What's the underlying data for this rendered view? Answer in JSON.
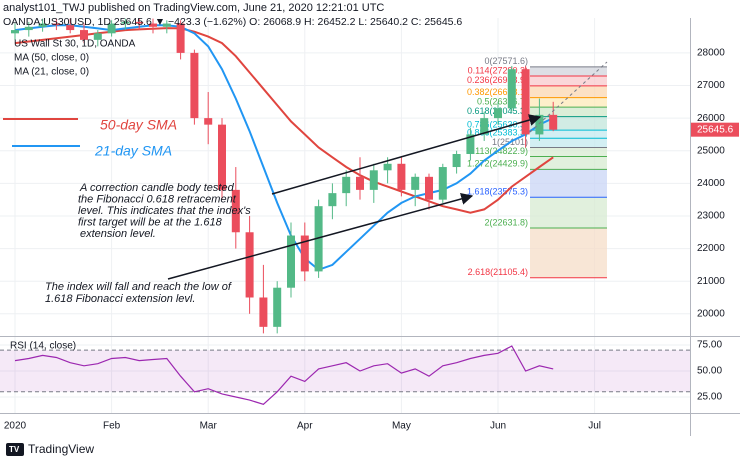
{
  "chart_data": {
    "type": "candlestick",
    "subtitle": "analyst101_TWJ published on TradingView.com, June 21, 2020 12:21:01 UTC",
    "quote_line": "OANDA:US30USD, 1D  25645.6  ▼ −423.3 (−1.62%)  O: 26068.9  H: 26452.2  L: 25640.2  C: 25645.6",
    "title": "US Wall St 30, 1D, OANDA",
    "categories": [
      "2020",
      null,
      null,
      null,
      null,
      null,
      null,
      "Feb",
      null,
      null,
      null,
      null,
      null,
      null,
      "Mar",
      null,
      null,
      null,
      null,
      null,
      null,
      "Apr",
      null,
      null,
      null,
      null,
      null,
      null,
      "May",
      null,
      null,
      null,
      null,
      null,
      null,
      "Jun",
      null,
      null,
      null,
      null,
      null,
      null,
      "Jul",
      null,
      null,
      null,
      null,
      null,
      null
    ],
    "open": [
      28600,
      28700,
      28800,
      28900,
      28850,
      28700,
      28400,
      28600,
      28900,
      28950,
      28900,
      28800,
      28900,
      28000,
      26000,
      25800,
      23800,
      22500,
      20500,
      19600,
      20800,
      22400,
      21300,
      23300,
      23700,
      24200,
      23800,
      24400,
      24600,
      23800,
      24200,
      23500,
      24500,
      24900,
      25500,
      26000,
      26300,
      27500,
      25500,
      26100,
      null,
      null,
      null,
      null,
      null,
      null,
      null,
      null,
      null
    ],
    "high": [
      28900,
      28950,
      29050,
      29050,
      29050,
      28900,
      28700,
      29000,
      29050,
      29050,
      29050,
      29000,
      29000,
      28100,
      26800,
      26000,
      24500,
      23000,
      21500,
      21000,
      22800,
      22800,
      23500,
      24000,
      24400,
      24800,
      24600,
      24800,
      24800,
      24300,
      24300,
      24600,
      25000,
      25700,
      26200,
      26500,
      27600,
      27600,
      26600,
      26500,
      null,
      null,
      null,
      null,
      null,
      null,
      null,
      null,
      null
    ],
    "low": [
      28400,
      28500,
      28650,
      28700,
      28600,
      28300,
      28200,
      28500,
      28700,
      28700,
      28600,
      28600,
      27800,
      25800,
      25200,
      23500,
      22000,
      20000,
      19400,
      19400,
      20500,
      21000,
      21100,
      22900,
      23300,
      23500,
      23400,
      24000,
      23600,
      23300,
      23200,
      23400,
      24300,
      24700,
      25300,
      25800,
      26200,
      25100,
      25300,
      25600,
      null,
      null,
      null,
      null,
      null,
      null,
      null,
      null,
      null
    ],
    "close": [
      28700,
      28800,
      28900,
      28850,
      28700,
      28400,
      28600,
      28900,
      28950,
      28900,
      28800,
      28900,
      28000,
      26000,
      25800,
      23800,
      22500,
      20500,
      19600,
      20800,
      22400,
      21300,
      23300,
      23700,
      24200,
      23800,
      24400,
      24600,
      23800,
      24200,
      23500,
      24500,
      24900,
      25500,
      26000,
      26300,
      27500,
      25500,
      26100,
      25645.6,
      null,
      null,
      null,
      null,
      null,
      null,
      null,
      null,
      null
    ],
    "up_color": "#53b987",
    "down_color": "#eb4d5c",
    "last_label": "25645.6",
    "series": [
      {
        "name": "MA (50, close, 0)",
        "color": "#e0453f",
        "values": [
          28300,
          28350,
          28400,
          28450,
          28500,
          28550,
          28600,
          28650,
          28700,
          28720,
          28740,
          28760,
          28750,
          28650,
          28500,
          28300,
          27900,
          27400,
          26900,
          26400,
          25900,
          25500,
          25100,
          24800,
          24500,
          24250,
          24050,
          23900,
          23750,
          23600,
          23450,
          23300,
          23200,
          23100,
          23200,
          23500,
          23900,
          24200,
          24500,
          24800,
          null,
          null,
          null,
          null,
          null,
          null,
          null,
          null,
          null
        ]
      },
      {
        "name": "MA (21, close, 0)",
        "color": "#2196f3",
        "values": [
          28700,
          28750,
          28800,
          28850,
          28850,
          28800,
          28750,
          28700,
          28750,
          28800,
          28850,
          28850,
          28800,
          28600,
          28200,
          27500,
          26600,
          25600,
          24500,
          23400,
          22400,
          21700,
          21350,
          21500,
          21900,
          22300,
          22700,
          23100,
          23400,
          23600,
          23700,
          23800,
          24000,
          24300,
          24700,
          25000,
          25300,
          25500,
          25800,
          26000,
          null,
          null,
          null,
          null,
          null,
          null,
          null,
          null,
          null
        ]
      }
    ],
    "ylim": [
      19350,
      29070
    ],
    "yticks": [
      20000,
      21000,
      22000,
      23000,
      24000,
      25000,
      26000,
      27000,
      28000
    ],
    "fib": {
      "levels": [
        {
          "value": 27571.6,
          "label": "0(27571.6)"
        },
        {
          "value": 27290.3,
          "label": "0.114(27290.3)"
        },
        {
          "value": 26988.9,
          "label": "0.236(26988.9)"
        },
        {
          "value": 26628.1,
          "label": "0.382(26628.1)"
        },
        {
          "value": 26336.7,
          "label": "0.5(26336.7)"
        },
        {
          "value": 26045.3,
          "label": "0.618(26045.3)"
        },
        {
          "value": 25630.3,
          "label": "0.786(25630.3)"
        },
        {
          "value": 25383.3,
          "label": "0.886(25383.3)"
        },
        {
          "value": 25101,
          "label": "1(25101)"
        },
        {
          "value": 24822.9,
          "label": "1.113(24822.9)"
        },
        {
          "value": 24429.9,
          "label": "1.272(24429.9)"
        },
        {
          "value": 23575.3,
          "label": "1.618(23575.3)"
        },
        {
          "value": 22631.8,
          "label": "2(22631.8)"
        },
        {
          "value": 21105.4,
          "label": "2.618(21105.4)"
        }
      ],
      "line_colors": [
        "#787b86",
        "#f23645",
        "#f23645",
        "#ff9800",
        "#4caf50",
        "#089981",
        "#00bcd4",
        "#00bcd4",
        "#787b86",
        "#4caf50",
        "#4caf50",
        "#2962ff",
        "#4caf50",
        "#f23645"
      ],
      "band_colors": [
        "#d1d4dc",
        "#f8c9cc",
        "#fbd7b0",
        "#fde9b8",
        "#cfe8c9",
        "#c2e6db",
        "#c4e9ef",
        "#c4e9ef",
        "#d7ebd2",
        "#d7ebd2",
        "#c9d6f5",
        "#d7ebd2",
        "#f5ddc8"
      ]
    },
    "annotations": {
      "sma50": "50-day SMA",
      "sma21": "21-day SMA",
      "note1": [
        "A correction candle body tested",
        "the Fibonacci 0.618 retracement",
        "level. This indicates that the index's",
        "first target will be at the 1.618",
        "extension level."
      ],
      "note2": [
        "The index will fall and reach the low of",
        "1.618 Fibonacci extension levl."
      ]
    },
    "rsi": {
      "name": "RSI (14, close)",
      "color": "#9c27b0",
      "values": [
        60,
        62,
        65,
        63,
        58,
        55,
        57,
        62,
        63,
        60,
        61,
        62,
        45,
        30,
        33,
        28,
        25,
        22,
        18,
        30,
        45,
        40,
        52,
        55,
        58,
        50,
        55,
        57,
        48,
        52,
        45,
        55,
        58,
        62,
        65,
        67,
        74,
        50,
        55,
        52,
        null,
        null,
        null,
        null,
        null,
        null,
        null,
        null,
        null
      ],
      "ylim": [
        10.6,
        81.7
      ],
      "yticks": [
        {
          "value": 25,
          "label": "25.00"
        },
        {
          "value": 50,
          "label": "50.00"
        },
        {
          "value": 75,
          "label": "75.00"
        }
      ],
      "band": [
        30,
        70
      ]
    },
    "brand": "TradingView"
  }
}
